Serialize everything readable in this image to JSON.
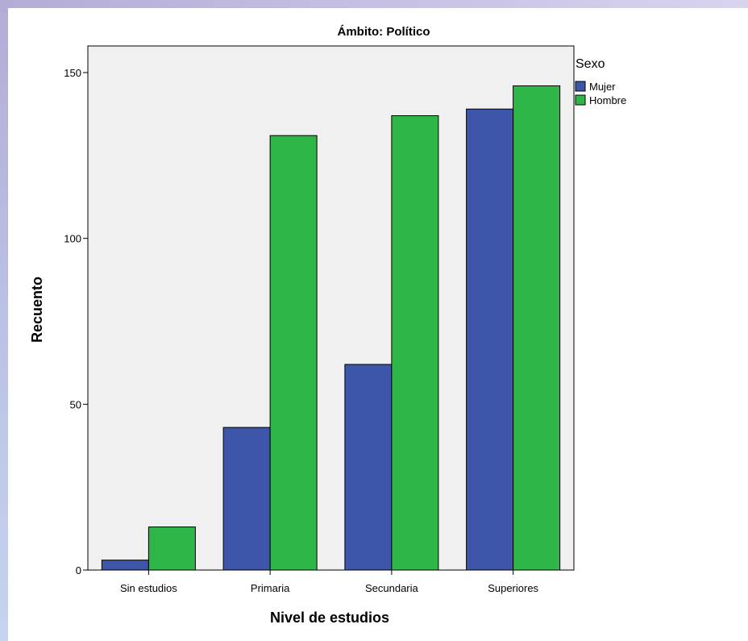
{
  "chart_data": {
    "type": "bar",
    "title": "Ámbito: Político",
    "xlabel": "Nivel de estudios",
    "ylabel": "Recuento",
    "categories": [
      "Sin estudios",
      "Primaria",
      "Secundaria",
      "Superiores"
    ],
    "series": [
      {
        "name": "Mujer",
        "color": "#3e56a9",
        "values": [
          3,
          43,
          62,
          139
        ]
      },
      {
        "name": "Hombre",
        "color": "#2fb648",
        "values": [
          13,
          131,
          137,
          146
        ]
      }
    ],
    "ylim": [
      0,
      150
    ],
    "yticks": [
      "0",
      "50",
      "100",
      "150"
    ],
    "legend": {
      "title": "Sexo",
      "placement": "right"
    },
    "plot_background": "#f0f0f0",
    "grid": false
  }
}
